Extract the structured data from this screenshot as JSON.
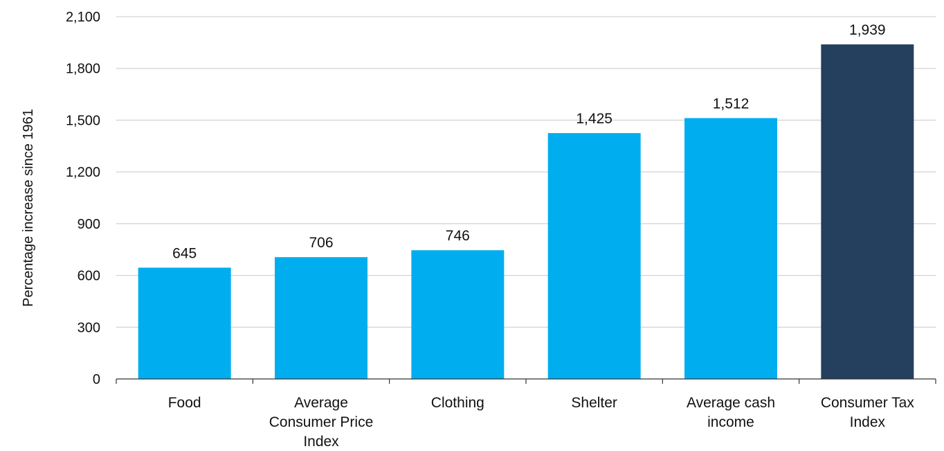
{
  "chart_data": {
    "type": "bar",
    "title": "",
    "xlabel": "",
    "ylabel": "Percentage increase since 1961",
    "ylim": [
      0,
      2100
    ],
    "yticks": [
      0,
      300,
      600,
      900,
      1200,
      1500,
      1800,
      2100
    ],
    "ytick_labels": [
      "0",
      "300",
      "600",
      "900",
      "1,200",
      "1,500",
      "1,800",
      "2,100"
    ],
    "grid": true,
    "categories": [
      [
        "Food"
      ],
      [
        "Average",
        "Consumer Price",
        "Index"
      ],
      [
        "Clothing"
      ],
      [
        "Shelter"
      ],
      [
        "Average cash",
        "income"
      ],
      [
        "Consumer Tax",
        "Index"
      ]
    ],
    "values": [
      645,
      706,
      746,
      1425,
      1512,
      1939
    ],
    "value_labels": [
      "645",
      "706",
      "746",
      "1,425",
      "1,512",
      "1,939"
    ],
    "colors": [
      "#00aeef",
      "#00aeef",
      "#00aeef",
      "#00aeef",
      "#00aeef",
      "#253f5e"
    ]
  }
}
